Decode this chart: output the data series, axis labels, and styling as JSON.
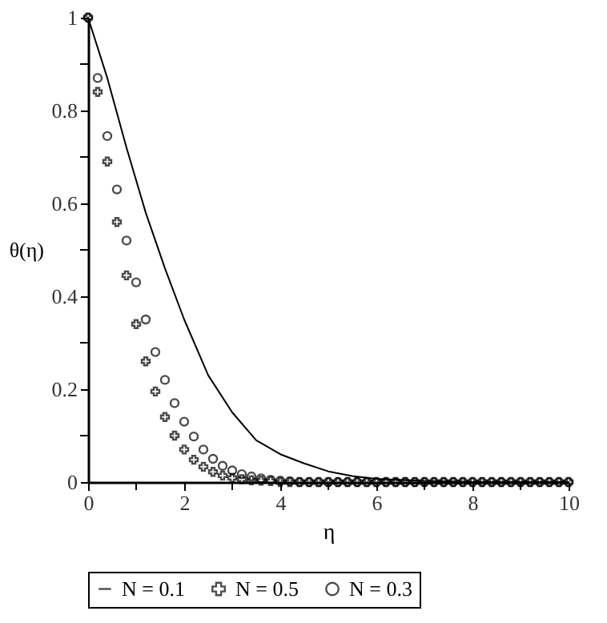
{
  "chart_data": {
    "type": "line",
    "xlabel": "η",
    "ylabel": "θ(η)",
    "x": [
      0,
      0.2,
      0.4,
      0.6,
      0.8,
      1,
      1.2,
      1.4,
      1.6,
      1.8,
      2,
      2.2,
      2.4,
      2.6,
      2.8,
      3,
      3.2,
      3.4,
      3.6,
      3.8,
      4,
      4.2,
      4.4,
      4.6,
      4.8,
      5,
      5.2,
      5.4,
      5.6,
      5.8,
      6,
      6.2,
      6.4,
      6.6,
      6.8,
      7,
      7.2,
      7.4,
      7.6,
      7.8,
      8,
      8.2,
      8.4,
      8.6,
      8.8,
      9,
      9.2,
      9.4,
      9.6,
      9.8,
      10
    ],
    "series": [
      {
        "name": "N = 0.1",
        "type": "line",
        "color": "#000000",
        "x": [
          0,
          0.4,
          0.8,
          1.2,
          1.6,
          2,
          2.5,
          3,
          3.5,
          4,
          4.5,
          5,
          5.5,
          6,
          7,
          8,
          10
        ],
        "values": [
          1,
          0.87,
          0.72,
          0.58,
          0.46,
          0.35,
          0.23,
          0.15,
          0.09,
          0.06,
          0.04,
          0.023,
          0.013,
          0.007,
          0.002,
          0,
          0
        ]
      },
      {
        "name": "N = 0.5",
        "type": "scatter",
        "marker": "cross",
        "color": "#000000",
        "values": [
          1,
          0.84,
          0.69,
          0.56,
          0.445,
          0.34,
          0.26,
          0.195,
          0.14,
          0.1,
          0.07,
          0.048,
          0.033,
          0.022,
          0.014,
          0.009,
          0.006,
          0.004,
          0.003,
          0.002,
          0,
          0,
          0,
          0,
          0,
          0,
          0,
          0,
          0,
          0,
          0,
          0,
          0,
          0,
          0,
          0,
          0,
          0,
          0,
          0,
          0,
          0,
          0,
          0,
          0,
          0,
          0,
          0,
          0,
          0,
          0
        ]
      },
      {
        "name": "N = 0.3",
        "type": "scatter",
        "marker": "circle",
        "color": "#000000",
        "values": [
          1,
          0.87,
          0.745,
          0.63,
          0.52,
          0.43,
          0.35,
          0.28,
          0.22,
          0.17,
          0.13,
          0.098,
          0.07,
          0.05,
          0.035,
          0.025,
          0.017,
          0.012,
          0.008,
          0.005,
          0.003,
          0.002,
          0,
          0,
          0,
          0,
          0,
          0,
          0,
          0,
          0,
          0,
          0,
          0,
          0,
          0,
          0,
          0,
          0,
          0,
          0,
          0,
          0,
          0,
          0,
          0,
          0,
          0,
          0,
          0,
          0
        ]
      }
    ],
    "xlim": [
      0,
      10
    ],
    "ylim": [
      0,
      1
    ],
    "xticks": [
      0,
      {
        "value": 1,
        "label": null
      },
      2,
      {
        "value": 3,
        "label": null
      },
      4,
      {
        "value": 5,
        "label": null
      },
      6,
      {
        "value": 7,
        "label": null
      },
      8,
      {
        "value": 9,
        "label": null
      },
      10
    ],
    "yticks": [
      0,
      {
        "value": 0.1,
        "label": null
      },
      0.2,
      {
        "value": 0.3,
        "label": null
      },
      0.4,
      {
        "value": 0.5,
        "label": null
      },
      0.6,
      {
        "value": 0.7,
        "label": null
      },
      0.8,
      {
        "value": 0.9,
        "label": null
      },
      1
    ],
    "grid": false,
    "legend": "bottom"
  }
}
